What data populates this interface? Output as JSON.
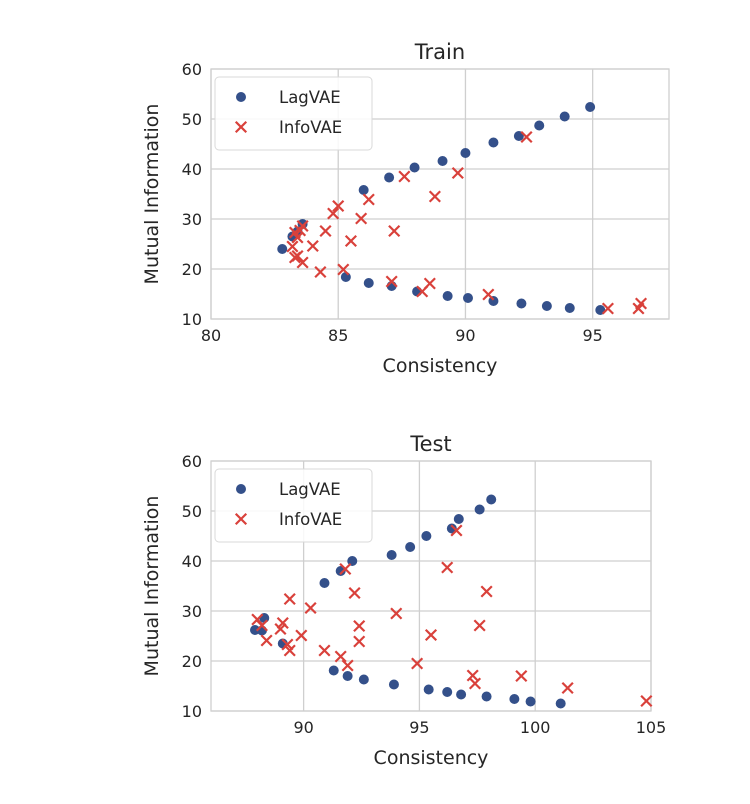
{
  "chart_data": [
    {
      "type": "scatter",
      "title": "Train",
      "xlabel": "Consistency",
      "ylabel": "Mutual Information",
      "xlim": [
        80,
        98
      ],
      "ylim": [
        10,
        60
      ],
      "xticks": [
        "80",
        "85",
        "90",
        "95"
      ],
      "yticks": [
        "10",
        "20",
        "30",
        "40",
        "50",
        "60"
      ],
      "grid": true,
      "legend": "top-left",
      "series": [
        {
          "name": "LagVAE",
          "marker": "circle",
          "color": "#34508a",
          "points": [
            [
              82.8,
              24.0
            ],
            [
              83.2,
              26.5
            ],
            [
              83.4,
              27.5
            ],
            [
              83.6,
              29.0
            ],
            [
              86.0,
              35.8
            ],
            [
              87.0,
              38.3
            ],
            [
              88.0,
              40.3
            ],
            [
              89.1,
              41.6
            ],
            [
              90.0,
              43.2
            ],
            [
              91.1,
              45.3
            ],
            [
              92.1,
              46.6
            ],
            [
              92.9,
              48.7
            ],
            [
              93.9,
              50.5
            ],
            [
              94.9,
              52.4
            ],
            [
              85.3,
              18.4
            ],
            [
              86.2,
              17.2
            ],
            [
              87.1,
              16.6
            ],
            [
              88.1,
              15.5
            ],
            [
              89.3,
              14.6
            ],
            [
              90.1,
              14.2
            ],
            [
              91.1,
              13.6
            ],
            [
              92.2,
              13.1
            ],
            [
              93.2,
              12.6
            ],
            [
              94.1,
              12.2
            ],
            [
              95.3,
              11.8
            ]
          ]
        },
        {
          "name": "InfoVAE",
          "marker": "x",
          "color": "#d9413b",
          "points": [
            [
              83.2,
              24.5
            ],
            [
              83.3,
              27.3
            ],
            [
              83.4,
              26.3
            ],
            [
              83.5,
              27.7
            ],
            [
              83.6,
              28.6
            ],
            [
              84.0,
              24.6
            ],
            [
              84.5,
              27.6
            ],
            [
              84.8,
              31.1
            ],
            [
              85.0,
              32.6
            ],
            [
              85.5,
              25.6
            ],
            [
              85.9,
              30.1
            ],
            [
              86.2,
              33.9
            ],
            [
              87.2,
              27.6
            ],
            [
              87.6,
              38.5
            ],
            [
              88.8,
              34.5
            ],
            [
              89.7,
              39.2
            ],
            [
              92.4,
              46.4
            ],
            [
              83.3,
              22.3
            ],
            [
              83.4,
              22.6
            ],
            [
              83.6,
              21.3
            ],
            [
              84.3,
              19.4
            ],
            [
              85.2,
              19.9
            ],
            [
              87.1,
              17.5
            ],
            [
              88.3,
              15.5
            ],
            [
              88.6,
              17.1
            ],
            [
              90.9,
              14.9
            ],
            [
              95.6,
              12.1
            ],
            [
              96.8,
              12.1
            ],
            [
              96.9,
              13.1
            ]
          ]
        }
      ]
    },
    {
      "type": "scatter",
      "title": "Test",
      "xlabel": "Consistency",
      "ylabel": "Mutual Information",
      "xlim": [
        86,
        105
      ],
      "ylim": [
        10,
        60
      ],
      "xticks": [
        "90",
        "95",
        "100",
        "105"
      ],
      "yticks": [
        "10",
        "20",
        "30",
        "40",
        "50",
        "60"
      ],
      "grid": true,
      "legend": "top-left",
      "series": [
        {
          "name": "LagVAE",
          "marker": "circle",
          "color": "#34508a",
          "points": [
            [
              87.9,
              26.2
            ],
            [
              88.2,
              26.1
            ],
            [
              88.3,
              28.6
            ],
            [
              89.1,
              23.5
            ],
            [
              90.9,
              35.6
            ],
            [
              91.6,
              38.0
            ],
            [
              92.1,
              40.0
            ],
            [
              93.8,
              41.2
            ],
            [
              94.6,
              42.8
            ],
            [
              95.3,
              45.0
            ],
            [
              96.4,
              46.5
            ],
            [
              96.7,
              48.4
            ],
            [
              97.6,
              50.3
            ],
            [
              98.1,
              52.3
            ],
            [
              91.3,
              18.1
            ],
            [
              91.9,
              17.0
            ],
            [
              92.6,
              16.3
            ],
            [
              93.9,
              15.3
            ],
            [
              95.4,
              14.3
            ],
            [
              96.2,
              13.8
            ],
            [
              96.8,
              13.3
            ],
            [
              97.9,
              12.9
            ],
            [
              99.1,
              12.4
            ],
            [
              99.8,
              11.9
            ],
            [
              101.1,
              11.5
            ]
          ]
        },
        {
          "name": "InfoVAE",
          "marker": "x",
          "color": "#d9413b",
          "points": [
            [
              88.0,
              28.3
            ],
            [
              88.2,
              27.1
            ],
            [
              88.4,
              24.1
            ],
            [
              89.0,
              26.4
            ],
            [
              89.1,
              27.6
            ],
            [
              89.3,
              23.3
            ],
            [
              89.4,
              22.1
            ],
            [
              89.4,
              32.4
            ],
            [
              89.9,
              25.1
            ],
            [
              90.3,
              30.6
            ],
            [
              90.9,
              22.1
            ],
            [
              91.6,
              20.9
            ],
            [
              91.8,
              38.4
            ],
            [
              91.9,
              19.1
            ],
            [
              92.2,
              33.6
            ],
            [
              92.4,
              23.9
            ],
            [
              92.4,
              27.0
            ],
            [
              94.0,
              29.5
            ],
            [
              94.9,
              19.5
            ],
            [
              95.5,
              25.2
            ],
            [
              96.2,
              38.7
            ],
            [
              96.6,
              46.1
            ],
            [
              97.3,
              17.1
            ],
            [
              97.4,
              15.5
            ],
            [
              97.6,
              27.1
            ],
            [
              97.9,
              33.9
            ],
            [
              99.4,
              17.0
            ],
            [
              101.4,
              14.6
            ],
            [
              104.8,
              12.0
            ]
          ]
        }
      ]
    }
  ]
}
